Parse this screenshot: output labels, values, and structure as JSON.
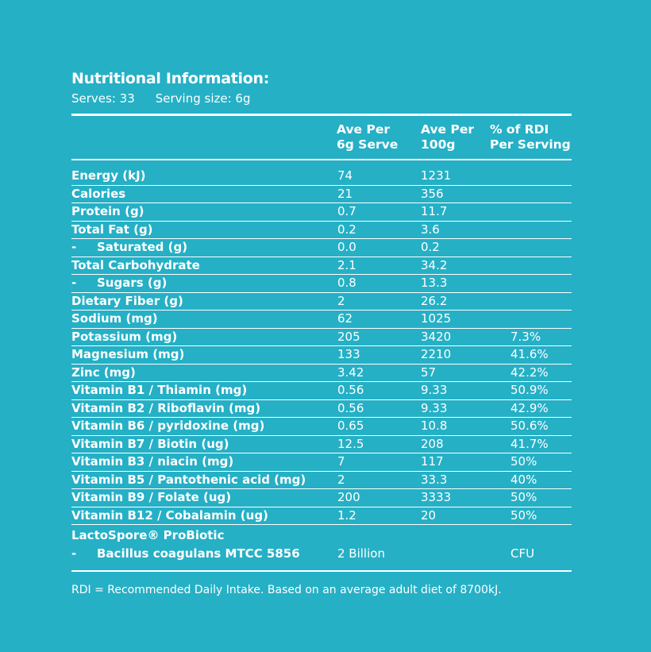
{
  "title": "Nutritional Information:",
  "serves": "Serves: 33",
  "serving_size": "Serving size: 6g",
  "columns": {
    "per_serve": "Ave Per\n6g Serve",
    "per_100g": "Ave Per\n100g",
    "rdi": "% of RDI\nPer Serving"
  },
  "rows": [
    {
      "name": "Energy (kJ)",
      "sub": false,
      "per_serve": "74",
      "per_100g": "1231",
      "rdi": ""
    },
    {
      "name": "Calories",
      "sub": false,
      "per_serve": "21",
      "per_100g": "356",
      "rdi": ""
    },
    {
      "name": "Protein (g)",
      "sub": false,
      "per_serve": "0.7",
      "per_100g": "11.7",
      "rdi": ""
    },
    {
      "name": "Total Fat (g)",
      "sub": false,
      "per_serve": "0.2",
      "per_100g": "3.6",
      "rdi": ""
    },
    {
      "name": "Saturated (g)",
      "sub": true,
      "per_serve": "0.0",
      "per_100g": "0.2",
      "rdi": ""
    },
    {
      "name": "Total Carbohydrate",
      "sub": false,
      "per_serve": "2.1",
      "per_100g": "34.2",
      "rdi": ""
    },
    {
      "name": "Sugars (g)",
      "sub": true,
      "per_serve": "0.8",
      "per_100g": "13.3",
      "rdi": ""
    },
    {
      "name": "Dietary Fiber (g)",
      "sub": false,
      "per_serve": "2",
      "per_100g": "26.2",
      "rdi": ""
    },
    {
      "name": "Sodium (mg)",
      "sub": false,
      "per_serve": "62",
      "per_100g": "1025",
      "rdi": ""
    },
    {
      "name": "Potassium (mg)",
      "sub": false,
      "per_serve": "205",
      "per_100g": "3420",
      "rdi": "7.3%"
    },
    {
      "name": "Magnesium (mg)",
      "sub": false,
      "per_serve": "133",
      "per_100g": "2210",
      "rdi": "41.6%"
    },
    {
      "name": "Zinc (mg)",
      "sub": false,
      "per_serve": "3.42",
      "per_100g": "57",
      "rdi": "42.2%"
    },
    {
      "name": "Vitamin B1 / Thiamin (mg)",
      "sub": false,
      "per_serve": "0.56",
      "per_100g": "9.33",
      "rdi": "50.9%"
    },
    {
      "name": "Vitamin B2 / Riboflavin (mg)",
      "sub": false,
      "per_serve": "0.56",
      "per_100g": "9.33",
      "rdi": "42.9%"
    },
    {
      "name": "Vitamin B6 / pyridoxine (mg)",
      "sub": false,
      "per_serve": "0.65",
      "per_100g": "10.8",
      "rdi": "50.6%"
    },
    {
      "name": "Vitamin B7 / Biotin (ug)",
      "sub": false,
      "per_serve": "12.5",
      "per_100g": "208",
      "rdi": "41.7%"
    },
    {
      "name": "Vitamin B3 / niacin (mg)",
      "sub": false,
      "per_serve": "7",
      "per_100g": "117",
      "rdi": "50%"
    },
    {
      "name": "Vitamin B5 / Pantothenic acid (mg)",
      "sub": false,
      "per_serve": "2",
      "per_100g": "33.3",
      "rdi": "40%"
    },
    {
      "name": "Vitamin B9 / Folate (ug)",
      "sub": false,
      "per_serve": "200",
      "per_100g": "3333",
      "rdi": "50%"
    },
    {
      "name": "Vitamin B12 / Cobalamin (ug)",
      "sub": false,
      "per_serve": "1.2",
      "per_100g": "20",
      "rdi": "50%"
    }
  ],
  "probiotic": {
    "name": "LactoSpore® ProBiotic",
    "dash": "-",
    "strain": "Bacillus coagulans MTCC 5856",
    "per_serve": "2 Billion",
    "unit": "CFU"
  },
  "footnote": "RDI = Recommended Daily Intake. Based on an average adult diet of 8700kJ.",
  "colors": {
    "background": "#25b0c6",
    "text": "#ffffff"
  }
}
